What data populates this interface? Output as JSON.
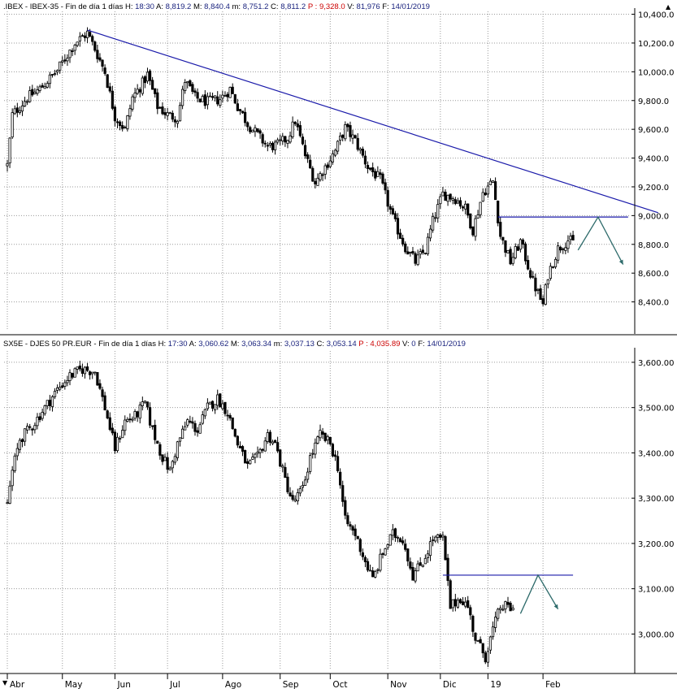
{
  "colors": {
    "background": "#ffffff",
    "candle": "#000000",
    "grid": "#9a9a9a",
    "trendline": "#1a1aaa",
    "resistance": "#1a1aaa",
    "projection_arrow": "#2e6b6b",
    "price_label": "#1a237e",
    "header_value": "#1a237e",
    "header_p_label": "#cc0000"
  },
  "chart_data": [
    {
      "type": "candlestick",
      "header": {
        "symbol": ".IBEX - IBEX-35 - Fin de día 1 días",
        "fields": [
          {
            "k": "H:",
            "v": "18:30",
            "c": "n"
          },
          {
            "k": "A:",
            "v": "8,819.2",
            "c": "n"
          },
          {
            "k": "M:",
            "v": "8,840.4",
            "c": "n"
          },
          {
            "k": "m:",
            "v": "8,751.2",
            "c": "n"
          },
          {
            "k": "C:",
            "v": "8,811.2",
            "c": "n"
          },
          {
            "k": "P :",
            "v": "9,328.0",
            "c": "r"
          },
          {
            "k": "V:",
            "v": "81,976",
            "c": "n"
          },
          {
            "k": "F:",
            "v": "14/01/2019",
            "c": "n"
          }
        ]
      },
      "ylim": [
        8200,
        10420
      ],
      "yticks": [
        8400,
        8600,
        8800,
        9000,
        9200,
        9400,
        9600,
        9800,
        10000,
        10200,
        10400
      ],
      "ytick_labels": [
        "8,400.0",
        "8,600.0",
        "8,800.0",
        "9,000.0",
        "9,200.0",
        "9,400.0",
        "9,600.0",
        "9,800.0",
        "10,000.0",
        "10,200.0",
        "10,400.0"
      ],
      "anchors": [
        [
          0,
          9350
        ],
        [
          2,
          9700
        ],
        [
          8,
          9820
        ],
        [
          13,
          9880
        ],
        [
          20,
          10010
        ],
        [
          27,
          10200
        ],
        [
          32,
          10270
        ],
        [
          35,
          10160
        ],
        [
          39,
          10000
        ],
        [
          43,
          9690
        ],
        [
          47,
          9600
        ],
        [
          50,
          9820
        ],
        [
          54,
          9920
        ],
        [
          56,
          9980
        ],
        [
          60,
          9760
        ],
        [
          64,
          9700
        ],
        [
          68,
          9680
        ],
        [
          71,
          9940
        ],
        [
          75,
          9820
        ],
        [
          80,
          9790
        ],
        [
          85,
          9810
        ],
        [
          89,
          9880
        ],
        [
          92,
          9760
        ],
        [
          96,
          9640
        ],
        [
          100,
          9560
        ],
        [
          104,
          9480
        ],
        [
          108,
          9490
        ],
        [
          112,
          9540
        ],
        [
          115,
          9660
        ],
        [
          119,
          9420
        ],
        [
          123,
          9230
        ],
        [
          127,
          9340
        ],
        [
          131,
          9450
        ],
        [
          135,
          9610
        ],
        [
          139,
          9520
        ],
        [
          144,
          9340
        ],
        [
          149,
          9250
        ],
        [
          154,
          8980
        ],
        [
          159,
          8780
        ],
        [
          163,
          8680
        ],
        [
          167,
          8760
        ],
        [
          170,
          8960
        ],
        [
          174,
          9150
        ],
        [
          179,
          9120
        ],
        [
          183,
          9050
        ],
        [
          186,
          8900
        ],
        [
          190,
          9160
        ],
        [
          194,
          9240
        ],
        [
          197,
          8860
        ],
        [
          201,
          8680
        ],
        [
          205,
          8820
        ],
        [
          210,
          8540
        ],
        [
          214,
          8380
        ],
        [
          216,
          8590
        ],
        [
          220,
          8770
        ],
        [
          224,
          8830
        ],
        [
          226,
          8811
        ]
      ],
      "series_close_note": "daily candles, Apr 2018 – 14/01/2019",
      "trendline": {
        "from": [
          32,
          10290
        ],
        "to": [
          260,
          9020
        ]
      },
      "resistance": {
        "from": [
          196,
          8990
        ],
        "to": [
          248,
          8990
        ]
      },
      "projection": [
        [
          228,
          8760
        ],
        [
          236,
          8990
        ],
        [
          246,
          8660
        ]
      ],
      "months": [
        {
          "label": "Abr",
          "bar": 0
        },
        {
          "label": "May",
          "bar": 22
        },
        {
          "label": "Jun",
          "bar": 43
        },
        {
          "label": "Jul",
          "bar": 64
        },
        {
          "label": "Ago",
          "bar": 86
        },
        {
          "label": "Sep",
          "bar": 109
        },
        {
          "label": "Oct",
          "bar": 129
        },
        {
          "label": "Nov",
          "bar": 152
        },
        {
          "label": "Dic",
          "bar": 173
        },
        {
          "label": "19",
          "bar": 192
        },
        {
          "label": "Feb",
          "bar": 214
        }
      ]
    },
    {
      "type": "candlestick",
      "header": {
        "symbol": "SX5E - DJES 50 PR.EUR - Fin de día 1 días",
        "fields": [
          {
            "k": "H:",
            "v": "17:30",
            "c": "n"
          },
          {
            "k": "A:",
            "v": "3,060.62",
            "c": "n"
          },
          {
            "k": "M:",
            "v": "3,063.34",
            "c": "n"
          },
          {
            "k": "m:",
            "v": "3,037.13",
            "c": "n"
          },
          {
            "k": "C:",
            "v": "3,053.14",
            "c": "n"
          },
          {
            "k": "P :",
            "v": "4,035.89",
            "c": "r"
          },
          {
            "k": "V:",
            "v": "0",
            "c": "n"
          },
          {
            "k": "F:",
            "v": "14/01/2019",
            "c": "n"
          }
        ]
      },
      "ylim": [
        2920,
        3625
      ],
      "yticks": [
        3000,
        3100,
        3200,
        3300,
        3400,
        3500,
        3600
      ],
      "ytick_labels": [
        "3,000.00",
        "3,100.00",
        "3,200.00",
        "3,300.00",
        "3,400.00",
        "3,500.00",
        "3,600.00"
      ],
      "anchors": [
        [
          0,
          3290
        ],
        [
          2,
          3360
        ],
        [
          5,
          3430
        ],
        [
          10,
          3460
        ],
        [
          15,
          3500
        ],
        [
          20,
          3540
        ],
        [
          25,
          3570
        ],
        [
          30,
          3585
        ],
        [
          35,
          3580
        ],
        [
          39,
          3500
        ],
        [
          43,
          3410
        ],
        [
          47,
          3470
        ],
        [
          51,
          3480
        ],
        [
          55,
          3510
        ],
        [
          58,
          3450
        ],
        [
          62,
          3390
        ],
        [
          65,
          3360
        ],
        [
          68,
          3420
        ],
        [
          72,
          3470
        ],
        [
          76,
          3450
        ],
        [
          80,
          3500
        ],
        [
          84,
          3520
        ],
        [
          88,
          3490
        ],
        [
          92,
          3420
        ],
        [
          96,
          3370
        ],
        [
          100,
          3390
        ],
        [
          104,
          3440
        ],
        [
          107,
          3420
        ],
        [
          111,
          3340
        ],
        [
          114,
          3290
        ],
        [
          118,
          3320
        ],
        [
          121,
          3390
        ],
        [
          125,
          3440
        ],
        [
          129,
          3420
        ],
        [
          132,
          3370
        ],
        [
          135,
          3250
        ],
        [
          139,
          3220
        ],
        [
          143,
          3160
        ],
        [
          146,
          3120
        ],
        [
          150,
          3180
        ],
        [
          154,
          3220
        ],
        [
          158,
          3210
        ],
        [
          162,
          3130
        ],
        [
          166,
          3160
        ],
        [
          170,
          3210
        ],
        [
          174,
          3210
        ],
        [
          177,
          3060
        ],
        [
          181,
          3080
        ],
        [
          184,
          3060
        ],
        [
          187,
          2990
        ],
        [
          191,
          2950
        ],
        [
          194,
          3010
        ],
        [
          197,
          3060
        ],
        [
          200,
          3060
        ],
        [
          202,
          3053
        ]
      ],
      "series_close_note": "daily candles, Apr 2018 – 14/01/2019",
      "resistance": {
        "from": [
          174,
          3130
        ],
        "to": [
          226,
          3130
        ]
      },
      "projection": [
        [
          205,
          3045
        ],
        [
          212,
          3130
        ],
        [
          220,
          3055
        ]
      ],
      "months": [
        {
          "label": "Abr",
          "bar": 0
        },
        {
          "label": "May",
          "bar": 22
        },
        {
          "label": "Jun",
          "bar": 43
        },
        {
          "label": "Jul",
          "bar": 64
        },
        {
          "label": "Ago",
          "bar": 86
        },
        {
          "label": "Sep",
          "bar": 109
        },
        {
          "label": "Oct",
          "bar": 129
        },
        {
          "label": "Nov",
          "bar": 152
        },
        {
          "label": "Dic",
          "bar": 173
        },
        {
          "label": "19",
          "bar": 192
        },
        {
          "label": "Feb",
          "bar": 214
        }
      ]
    }
  ],
  "window": {
    "scroll_up_glyph": "▲",
    "scroll_down_glyph": "▼",
    "scrollbar_icon": "scroll-arrow-icon"
  }
}
